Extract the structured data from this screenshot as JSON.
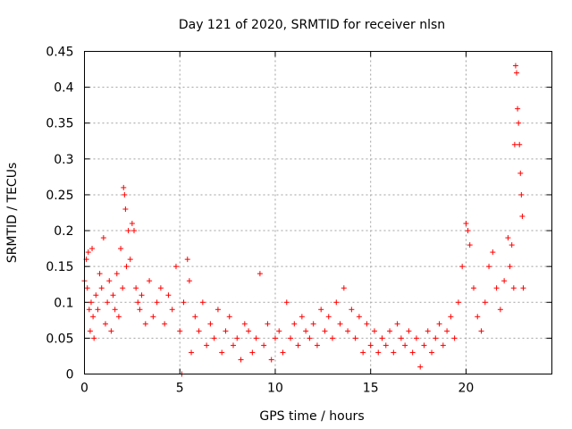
{
  "chart_data": {
    "type": "scatter",
    "title": "Day 121 of 2020, SRMTID for receiver nlsn",
    "xlabel": "GPS time / hours",
    "ylabel": "SRMTID / TECUs",
    "xlim": [
      0,
      24.5
    ],
    "ylim": [
      0,
      0.45
    ],
    "xticks": [
      0,
      5,
      10,
      15,
      20
    ],
    "xtick_labels": [
      "0",
      "5",
      "10",
      "15",
      "20"
    ],
    "yticks": [
      0,
      0.05,
      0.1,
      0.15,
      0.2,
      0.25,
      0.3,
      0.35,
      0.4,
      0.45
    ],
    "ytick_labels": [
      "0",
      "0.05",
      "0.1",
      "0.15",
      "0.2",
      "0.25",
      "0.3",
      "0.35",
      "0.4",
      "0.45"
    ],
    "grid": true,
    "marker": "plus",
    "color": "#ff0000",
    "series": [
      {
        "name": "SRMTID",
        "points": [
          [
            0.0,
            0.13
          ],
          [
            0.1,
            0.16
          ],
          [
            0.15,
            0.12
          ],
          [
            0.2,
            0.17
          ],
          [
            0.25,
            0.09
          ],
          [
            0.3,
            0.06
          ],
          [
            0.35,
            0.1
          ],
          [
            0.4,
            0.175
          ],
          [
            0.45,
            0.08
          ],
          [
            0.5,
            0.05
          ],
          [
            0.6,
            0.11
          ],
          [
            0.7,
            0.09
          ],
          [
            0.8,
            0.14
          ],
          [
            0.9,
            0.12
          ],
          [
            1.0,
            0.19
          ],
          [
            1.1,
            0.07
          ],
          [
            1.2,
            0.1
          ],
          [
            1.3,
            0.13
          ],
          [
            1.4,
            0.06
          ],
          [
            1.5,
            0.11
          ],
          [
            1.6,
            0.09
          ],
          [
            1.7,
            0.14
          ],
          [
            1.8,
            0.08
          ],
          [
            1.9,
            0.175
          ],
          [
            2.0,
            0.12
          ],
          [
            2.05,
            0.26
          ],
          [
            2.1,
            0.25
          ],
          [
            2.15,
            0.23
          ],
          [
            2.2,
            0.15
          ],
          [
            2.3,
            0.2
          ],
          [
            2.4,
            0.16
          ],
          [
            2.5,
            0.21
          ],
          [
            2.6,
            0.2
          ],
          [
            2.7,
            0.12
          ],
          [
            2.8,
            0.1
          ],
          [
            2.9,
            0.09
          ],
          [
            3.0,
            0.11
          ],
          [
            3.2,
            0.07
          ],
          [
            3.4,
            0.13
          ],
          [
            3.6,
            0.08
          ],
          [
            3.8,
            0.1
          ],
          [
            4.0,
            0.12
          ],
          [
            4.2,
            0.07
          ],
          [
            4.4,
            0.11
          ],
          [
            4.6,
            0.09
          ],
          [
            4.8,
            0.15
          ],
          [
            5.0,
            0.06
          ],
          [
            5.1,
            0.0
          ],
          [
            5.2,
            0.1
          ],
          [
            5.4,
            0.16
          ],
          [
            5.5,
            0.13
          ],
          [
            5.6,
            0.03
          ],
          [
            5.8,
            0.08
          ],
          [
            6.0,
            0.06
          ],
          [
            6.2,
            0.1
          ],
          [
            6.4,
            0.04
          ],
          [
            6.6,
            0.07
          ],
          [
            6.8,
            0.05
          ],
          [
            7.0,
            0.09
          ],
          [
            7.2,
            0.03
          ],
          [
            7.4,
            0.06
          ],
          [
            7.6,
            0.08
          ],
          [
            7.8,
            0.04
          ],
          [
            8.0,
            0.05
          ],
          [
            8.2,
            0.02
          ],
          [
            8.4,
            0.07
          ],
          [
            8.6,
            0.06
          ],
          [
            8.8,
            0.03
          ],
          [
            9.0,
            0.05
          ],
          [
            9.2,
            0.14
          ],
          [
            9.4,
            0.04
          ],
          [
            9.6,
            0.07
          ],
          [
            9.8,
            0.02
          ],
          [
            10.0,
            0.05
          ],
          [
            10.2,
            0.06
          ],
          [
            10.4,
            0.03
          ],
          [
            10.6,
            0.1
          ],
          [
            10.8,
            0.05
          ],
          [
            11.0,
            0.07
          ],
          [
            11.2,
            0.04
          ],
          [
            11.4,
            0.08
          ],
          [
            11.6,
            0.06
          ],
          [
            11.8,
            0.05
          ],
          [
            12.0,
            0.07
          ],
          [
            12.2,
            0.04
          ],
          [
            12.4,
            0.09
          ],
          [
            12.6,
            0.06
          ],
          [
            12.8,
            0.08
          ],
          [
            13.0,
            0.05
          ],
          [
            13.2,
            0.1
          ],
          [
            13.4,
            0.07
          ],
          [
            13.6,
            0.12
          ],
          [
            13.8,
            0.06
          ],
          [
            14.0,
            0.09
          ],
          [
            14.2,
            0.05
          ],
          [
            14.4,
            0.08
          ],
          [
            14.6,
            0.03
          ],
          [
            14.8,
            0.07
          ],
          [
            15.0,
            0.04
          ],
          [
            15.2,
            0.06
          ],
          [
            15.4,
            0.03
          ],
          [
            15.6,
            0.05
          ],
          [
            15.8,
            0.04
          ],
          [
            16.0,
            0.06
          ],
          [
            16.2,
            0.03
          ],
          [
            16.4,
            0.07
          ],
          [
            16.6,
            0.05
          ],
          [
            16.8,
            0.04
          ],
          [
            17.0,
            0.06
          ],
          [
            17.2,
            0.03
          ],
          [
            17.4,
            0.05
          ],
          [
            17.6,
            0.01
          ],
          [
            17.8,
            0.04
          ],
          [
            18.0,
            0.06
          ],
          [
            18.2,
            0.03
          ],
          [
            18.4,
            0.05
          ],
          [
            18.6,
            0.07
          ],
          [
            18.8,
            0.04
          ],
          [
            19.0,
            0.06
          ],
          [
            19.2,
            0.08
          ],
          [
            19.4,
            0.05
          ],
          [
            19.6,
            0.1
          ],
          [
            19.8,
            0.15
          ],
          [
            20.0,
            0.21
          ],
          [
            20.1,
            0.2
          ],
          [
            20.2,
            0.18
          ],
          [
            20.4,
            0.12
          ],
          [
            20.6,
            0.08
          ],
          [
            20.8,
            0.06
          ],
          [
            21.0,
            0.1
          ],
          [
            21.2,
            0.15
          ],
          [
            21.4,
            0.17
          ],
          [
            21.6,
            0.12
          ],
          [
            21.8,
            0.09
          ],
          [
            22.0,
            0.13
          ],
          [
            22.2,
            0.19
          ],
          [
            22.3,
            0.15
          ],
          [
            22.4,
            0.18
          ],
          [
            22.5,
            0.12
          ],
          [
            22.55,
            0.32
          ],
          [
            22.6,
            0.43
          ],
          [
            22.65,
            0.42
          ],
          [
            22.7,
            0.37
          ],
          [
            22.75,
            0.35
          ],
          [
            22.8,
            0.32
          ],
          [
            22.85,
            0.28
          ],
          [
            22.9,
            0.25
          ],
          [
            22.95,
            0.22
          ],
          [
            23.0,
            0.12
          ]
        ]
      }
    ]
  }
}
